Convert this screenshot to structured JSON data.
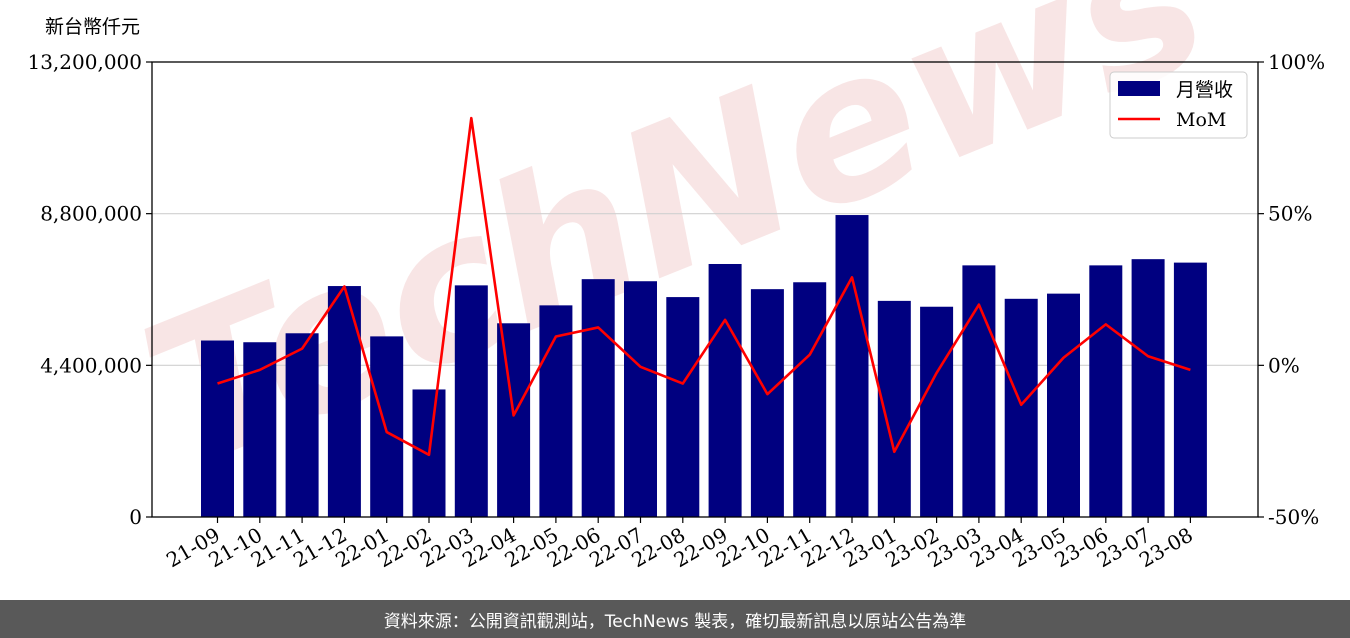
{
  "chart_data": {
    "type": "bar",
    "unit_label": "新台幣仟元",
    "categories": [
      "21-09",
      "21-10",
      "21-11",
      "21-12",
      "22-01",
      "22-02",
      "22-03",
      "22-04",
      "22-05",
      "22-06",
      "22-07",
      "22-08",
      "22-09",
      "22-10",
      "22-11",
      "22-12",
      "23-01",
      "23-02",
      "23-03",
      "23-04",
      "23-05",
      "23-06",
      "23-07",
      "23-08"
    ],
    "series": [
      {
        "name": "月營收",
        "axis": "left",
        "color": "#000080",
        "values": [
          5120000,
          5070000,
          5330000,
          6700000,
          5240000,
          3700000,
          6720000,
          5620000,
          6140000,
          6900000,
          6840000,
          6380000,
          7340000,
          6610000,
          6810000,
          8760000,
          6270000,
          6100000,
          7300000,
          6330000,
          6480000,
          7300000,
          7480000,
          7380000
        ]
      },
      {
        "name": "MoM",
        "axis": "right",
        "color": "#ff0000",
        "type": "line",
        "values": [
          -6,
          -1.5,
          5.5,
          26,
          -22,
          -29.5,
          81.5,
          -16.5,
          9.5,
          12.5,
          -0.5,
          -6,
          15,
          -9.5,
          3.5,
          29,
          -28.5,
          -2.5,
          20,
          -13,
          2.5,
          13.5,
          3,
          -1.5
        ]
      }
    ],
    "ylim_left": [
      0,
      13200000
    ],
    "yticks_left": [
      0,
      4400000,
      8800000,
      13200000
    ],
    "ytick_labels_left": [
      "0",
      "4,400,000",
      "8,800,000",
      "13,200,000"
    ],
    "ylim_right": [
      -50,
      100
    ],
    "yticks_right": [
      -50,
      0,
      50,
      100
    ],
    "ytick_labels_right": [
      "-50%",
      "0%",
      "50%",
      "100%"
    ],
    "grid": "horizontal",
    "legend": "top-right",
    "watermark": "TechNews"
  },
  "footer": {
    "source_text": "資料來源：公開資訊觀測站，TechNews 製表，確切最新訊息以原站公告為準"
  }
}
